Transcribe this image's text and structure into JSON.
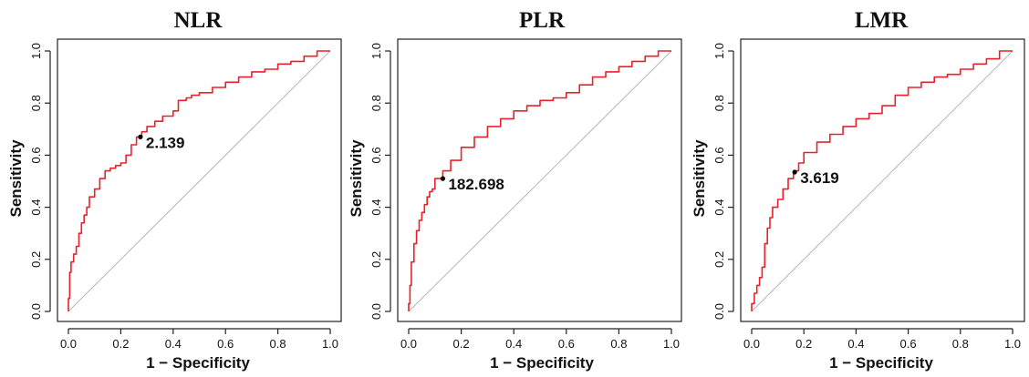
{
  "colors": {
    "roc_curve": "#e8222a",
    "reference_line": "#b5b5b5",
    "cutoff_point": "#000000"
  },
  "chart_data": [
    {
      "type": "line",
      "title": "NLR",
      "xlabel": "1 − Specificity",
      "ylabel": "Sensitivity",
      "xlim": [
        0,
        1
      ],
      "ylim": [
        0,
        1
      ],
      "xticks": [
        "0.0",
        "0.2",
        "0.4",
        "0.6",
        "0.8",
        "1.0"
      ],
      "yticks": [
        "0.0",
        "0.2",
        "0.4",
        "0.6",
        "0.8",
        "1.0"
      ],
      "grid": false,
      "reference_line": "diagonal",
      "x": [
        0,
        0.005,
        0.01,
        0.02,
        0.03,
        0.04,
        0.05,
        0.06,
        0.07,
        0.08,
        0.1,
        0.12,
        0.14,
        0.16,
        0.18,
        0.2,
        0.22,
        0.24,
        0.26,
        0.28,
        0.3,
        0.33,
        0.36,
        0.4,
        0.42,
        0.45,
        0.47,
        0.5,
        0.55,
        0.6,
        0.65,
        0.7,
        0.75,
        0.8,
        0.85,
        0.9,
        0.95,
        1.0
      ],
      "y": [
        0,
        0.05,
        0.15,
        0.19,
        0.22,
        0.25,
        0.3,
        0.34,
        0.37,
        0.4,
        0.44,
        0.47,
        0.51,
        0.54,
        0.55,
        0.56,
        0.57,
        0.6,
        0.64,
        0.67,
        0.69,
        0.71,
        0.73,
        0.75,
        0.77,
        0.81,
        0.82,
        0.83,
        0.84,
        0.86,
        0.88,
        0.9,
        0.92,
        0.93,
        0.95,
        0.96,
        0.98,
        1.0
      ],
      "cutoff": {
        "x": 0.275,
        "y": 0.67,
        "label": "2.139"
      }
    },
    {
      "type": "line",
      "title": "PLR",
      "xlabel": "1 − Specificity",
      "ylabel": "Sensitivity",
      "xlim": [
        0,
        1
      ],
      "ylim": [
        0,
        1
      ],
      "xticks": [
        "0.0",
        "0.2",
        "0.4",
        "0.6",
        "0.8",
        "1.0"
      ],
      "yticks": [
        "0.0",
        "0.2",
        "0.4",
        "0.6",
        "0.8",
        "1.0"
      ],
      "grid": false,
      "reference_line": "diagonal",
      "x": [
        0,
        0.005,
        0.01,
        0.02,
        0.03,
        0.04,
        0.05,
        0.06,
        0.07,
        0.08,
        0.09,
        0.1,
        0.13,
        0.16,
        0.2,
        0.25,
        0.3,
        0.35,
        0.4,
        0.45,
        0.5,
        0.55,
        0.6,
        0.65,
        0.7,
        0.75,
        0.8,
        0.85,
        0.9,
        0.95,
        1.0
      ],
      "y": [
        0,
        0.03,
        0.1,
        0.19,
        0.26,
        0.31,
        0.35,
        0.38,
        0.41,
        0.44,
        0.46,
        0.47,
        0.51,
        0.54,
        0.58,
        0.63,
        0.67,
        0.71,
        0.74,
        0.77,
        0.79,
        0.81,
        0.82,
        0.84,
        0.87,
        0.9,
        0.92,
        0.94,
        0.96,
        0.98,
        1.0
      ],
      "cutoff": {
        "x": 0.13,
        "y": 0.51,
        "label": "182.698"
      }
    },
    {
      "type": "line",
      "title": "LMR",
      "xlabel": "1 − Specificity",
      "ylabel": "Sensitivity",
      "xlim": [
        0,
        1
      ],
      "ylim": [
        0,
        1
      ],
      "xticks": [
        "0.0",
        "0.2",
        "0.4",
        "0.6",
        "0.8",
        "1.0"
      ],
      "yticks": [
        "0.0",
        "0.2",
        "0.4",
        "0.6",
        "0.8",
        "1.0"
      ],
      "grid": false,
      "reference_line": "diagonal",
      "x": [
        0,
        0.01,
        0.02,
        0.03,
        0.04,
        0.05,
        0.06,
        0.07,
        0.08,
        0.1,
        0.12,
        0.14,
        0.16,
        0.18,
        0.2,
        0.25,
        0.3,
        0.35,
        0.4,
        0.45,
        0.5,
        0.55,
        0.6,
        0.65,
        0.7,
        0.75,
        0.8,
        0.85,
        0.9,
        0.95,
        1.0
      ],
      "y": [
        0,
        0.03,
        0.07,
        0.1,
        0.13,
        0.17,
        0.26,
        0.32,
        0.36,
        0.4,
        0.43,
        0.47,
        0.51,
        0.54,
        0.57,
        0.61,
        0.65,
        0.68,
        0.71,
        0.74,
        0.76,
        0.79,
        0.83,
        0.86,
        0.88,
        0.9,
        0.91,
        0.93,
        0.95,
        0.97,
        1.0
      ],
      "cutoff": {
        "x": 0.165,
        "y": 0.535,
        "label": "3.619"
      }
    }
  ]
}
